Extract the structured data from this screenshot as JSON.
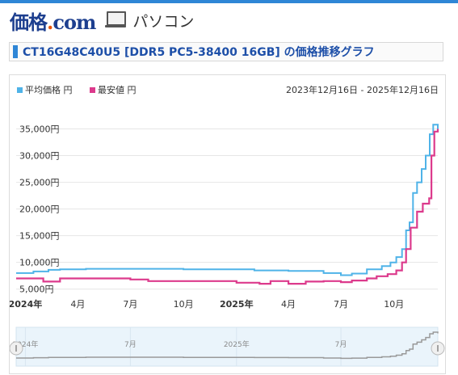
{
  "header": {
    "logo_main": "価格",
    "logo_dot": ".",
    "logo_com": "com",
    "category": "パソコン",
    "icon": "laptop-icon"
  },
  "page_title": "CT16G48C40U5 [DDR5 PC5-38400 16GB] の価格推移グラフ",
  "colors": {
    "average": "#4fb3e8",
    "minimum": "#dc3a8c",
    "accent": "#2f86d6",
    "navigator": "#999999"
  },
  "chart_data": {
    "type": "line",
    "date_range": "2023年12月16日 - 2025年12月16日",
    "legend_position": "top-left",
    "grid": true,
    "y_tick_labels": [
      "5,000円",
      "10,000円",
      "15,000円",
      "20,000円",
      "25,000円",
      "30,000円",
      "35,000円"
    ],
    "y_tick_values": [
      5000,
      10000,
      15000,
      20000,
      25000,
      30000,
      35000
    ],
    "x_tick_labels": [
      "2024年",
      "4月",
      "7月",
      "10月",
      "2025年",
      "4月",
      "7月",
      "10月"
    ],
    "x_tick_dates": [
      "2024-01-01",
      "2024-04-01",
      "2024-07-01",
      "2024-10-01",
      "2025-01-01",
      "2025-04-01",
      "2025-07-01",
      "2025-10-01"
    ],
    "navigator_tick_labels": [
      "2024年",
      "7月",
      "2025年",
      "7月"
    ],
    "navigator_tick_dates": [
      "2024-01-01",
      "2024-07-01",
      "2025-01-01",
      "2025-07-01"
    ],
    "x_range": [
      "2023-12-16",
      "2025-12-16"
    ],
    "ylim": [
      4500,
      37500
    ],
    "series": [
      {
        "name": "平均価格 円",
        "points": [
          [
            "2023-12-16",
            8000
          ],
          [
            "2024-01-15",
            8300
          ],
          [
            "2024-02-10",
            8600
          ],
          [
            "2024-03-01",
            8700
          ],
          [
            "2024-04-15",
            8800
          ],
          [
            "2024-06-01",
            8800
          ],
          [
            "2024-08-01",
            8800
          ],
          [
            "2024-10-01",
            8700
          ],
          [
            "2024-12-01",
            8700
          ],
          [
            "2025-02-01",
            8500
          ],
          [
            "2025-04-01",
            8400
          ],
          [
            "2025-06-01",
            8000
          ],
          [
            "2025-07-01",
            7600
          ],
          [
            "2025-07-20",
            7900
          ],
          [
            "2025-08-15",
            8700
          ],
          [
            "2025-09-10",
            9300
          ],
          [
            "2025-09-25",
            10000
          ],
          [
            "2025-10-05",
            11000
          ],
          [
            "2025-10-15",
            12500
          ],
          [
            "2025-10-22",
            16000
          ],
          [
            "2025-10-28",
            17500
          ],
          [
            "2025-11-03",
            23000
          ],
          [
            "2025-11-10",
            25000
          ],
          [
            "2025-11-18",
            27500
          ],
          [
            "2025-11-25",
            30000
          ],
          [
            "2025-12-02",
            34000
          ],
          [
            "2025-12-08",
            35800
          ],
          [
            "2025-12-16",
            34500
          ]
        ]
      },
      {
        "name": "最安値 円",
        "points": [
          [
            "2023-12-16",
            7000
          ],
          [
            "2024-01-20",
            7000
          ],
          [
            "2024-02-01",
            6400
          ],
          [
            "2024-02-25",
            6400
          ],
          [
            "2024-03-01",
            7000
          ],
          [
            "2024-05-01",
            7000
          ],
          [
            "2024-06-20",
            7000
          ],
          [
            "2024-07-01",
            6800
          ],
          [
            "2024-08-01",
            6500
          ],
          [
            "2024-12-01",
            6500
          ],
          [
            "2025-01-01",
            6200
          ],
          [
            "2025-02-10",
            6000
          ],
          [
            "2025-03-01",
            6500
          ],
          [
            "2025-04-01",
            6000
          ],
          [
            "2025-05-01",
            6400
          ],
          [
            "2025-06-01",
            6500
          ],
          [
            "2025-07-01",
            6300
          ],
          [
            "2025-07-20",
            6600
          ],
          [
            "2025-08-15",
            7000
          ],
          [
            "2025-09-01",
            7400
          ],
          [
            "2025-09-20",
            7800
          ],
          [
            "2025-10-05",
            8500
          ],
          [
            "2025-10-15",
            10000
          ],
          [
            "2025-10-22",
            12500
          ],
          [
            "2025-10-30",
            16500
          ],
          [
            "2025-11-10",
            19500
          ],
          [
            "2025-11-20",
            21000
          ],
          [
            "2025-12-01",
            22000
          ],
          [
            "2025-12-05",
            30000
          ],
          [
            "2025-12-10",
            34500
          ],
          [
            "2025-12-16",
            35000
          ]
        ]
      }
    ]
  }
}
